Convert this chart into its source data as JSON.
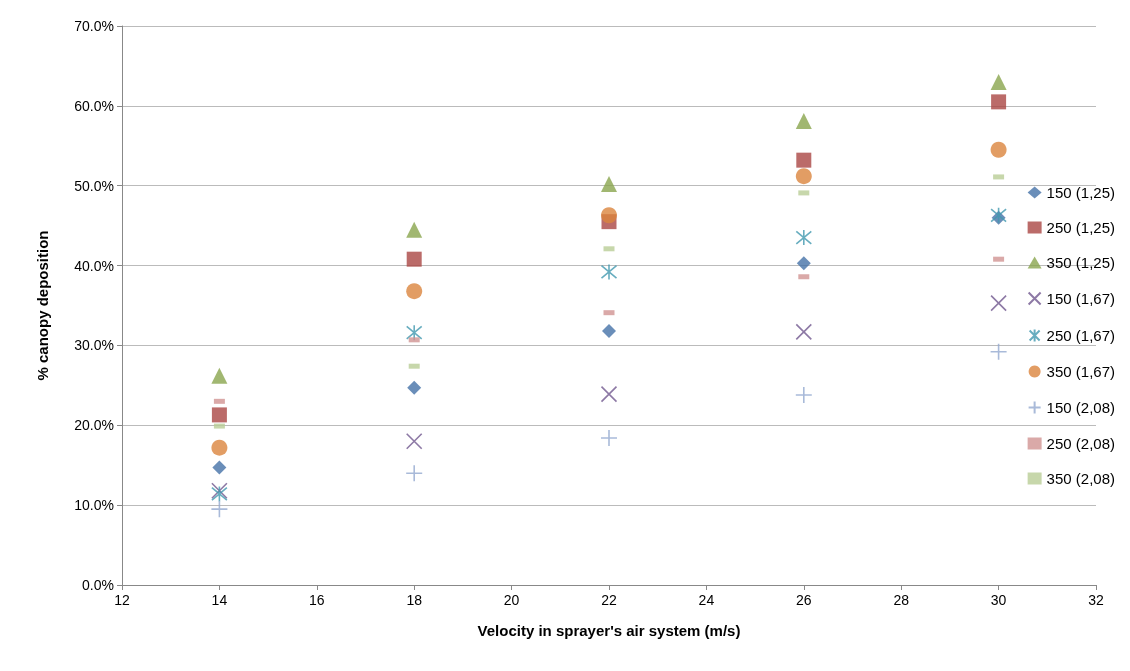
{
  "chart_data": {
    "type": "scatter",
    "xlabel": "Velocity in sprayer's air system (m/s)",
    "ylabel": "% canopy deposition",
    "x": [
      14,
      18,
      22,
      26,
      30
    ],
    "series": [
      {
        "name": "150 (1,25)",
        "color": "#4572a7",
        "marker": "diamond",
        "values": [
          14.7,
          24.7,
          31.8,
          40.3,
          46.0
        ]
      },
      {
        "name": "250 (1,25)",
        "color": "#aa4643",
        "marker": "square",
        "values": [
          21.3,
          40.8,
          45.5,
          53.2,
          60.5
        ]
      },
      {
        "name": "350 (1,25)",
        "color": "#89a54e",
        "marker": "triangle",
        "values": [
          26.2,
          44.5,
          50.2,
          58.1,
          63.0
        ]
      },
      {
        "name": "150 (1,67)",
        "color": "#71588f",
        "marker": "x",
        "values": [
          11.8,
          18.0,
          23.9,
          31.7,
          35.3
        ]
      },
      {
        "name": "250 (1,67)",
        "color": "#4198af",
        "marker": "cross",
        "values": [
          11.4,
          31.6,
          39.2,
          43.5,
          46.3
        ]
      },
      {
        "name": "350 (1,67)",
        "color": "#db843d",
        "marker": "circle",
        "values": [
          17.2,
          36.8,
          46.3,
          51.2,
          54.5
        ]
      },
      {
        "name": "150 (2,08)",
        "color": "#93a9cf",
        "marker": "plus",
        "values": [
          9.5,
          14.0,
          18.4,
          23.8,
          29.2
        ]
      },
      {
        "name": "250 (2,08)",
        "color": "#d19392",
        "values": [
          23.0,
          30.7,
          34.1,
          38.6,
          40.8
        ]
      },
      {
        "name": "350 (2,08)",
        "color": "#b9cd96",
        "values": [
          19.9,
          27.4,
          42.1,
          49.1,
          51.1
        ]
      }
    ],
    "xlim": [
      12,
      32
    ],
    "xticks": [
      12,
      14,
      16,
      18,
      20,
      22,
      24,
      26,
      28,
      30,
      32
    ],
    "ylim": [
      0,
      70
    ],
    "yticks": [
      {
        "value": 0,
        "label": "0.0%"
      },
      {
        "value": 10,
        "label": "10.0%"
      },
      {
        "value": 20,
        "label": "20.0%"
      },
      {
        "value": 30,
        "label": "30.0%"
      },
      {
        "value": 40,
        "label": "40.0%"
      },
      {
        "value": 50,
        "label": "50.0%"
      },
      {
        "value": 60,
        "label": "60.0%"
      },
      {
        "value": 70,
        "label": "70.0%"
      }
    ],
    "grid": "y",
    "legend": "right"
  }
}
